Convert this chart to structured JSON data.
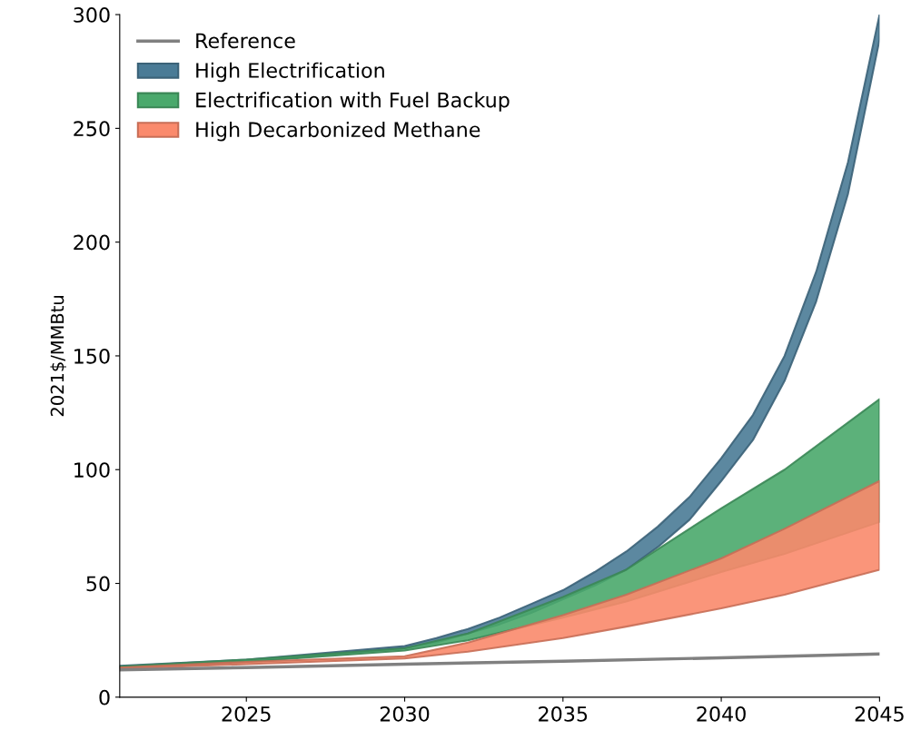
{
  "chart_data": {
    "type": "area",
    "ylabel": "2021$/MMBtu",
    "xlim": [
      2021,
      2045
    ],
    "ylim": [
      0,
      300
    ],
    "xticks": [
      2025,
      2030,
      2035,
      2040,
      2045
    ],
    "yticks": [
      0,
      50,
      100,
      150,
      200,
      250,
      300
    ],
    "grid": false,
    "legend": "top left",
    "series": [
      {
        "name": "Reference",
        "type": "line",
        "color": "#808080",
        "x": [
          2021,
          2025,
          2030,
          2035,
          2040,
          2045
        ],
        "values": [
          12,
          13,
          14.5,
          15.8,
          17.3,
          19
        ]
      },
      {
        "name": "High Electrification",
        "color": "#4a7b96",
        "x": [
          2021,
          2025,
          2030,
          2031,
          2032,
          2033,
          2034,
          2035,
          2036,
          2037,
          2038,
          2039,
          2040,
          2041,
          2042,
          2043,
          2044,
          2045
        ],
        "values": [
          null,
          null,
          null,
          null,
          null,
          null,
          null,
          null,
          null,
          null,
          null,
          null,
          null,
          null,
          null,
          null,
          null,
          null
        ],
        "lower": [
          13,
          15.5,
          21.5,
          24,
          28,
          32,
          37,
          43,
          49,
          56,
          66,
          78,
          95,
          113,
          139,
          174,
          221,
          289
        ],
        "upper": [
          13.8,
          16.5,
          22.5,
          26,
          30,
          35,
          41,
          47,
          55,
          64,
          75,
          88,
          105,
          124,
          150,
          187,
          235,
          300
        ]
      },
      {
        "name": "Electrification with Fuel Backup",
        "color": "#4aa96c",
        "x": [
          2021,
          2025,
          2030,
          2032,
          2035,
          2037,
          2040,
          2042,
          2045
        ],
        "values": [
          null,
          null,
          null,
          null,
          null,
          null,
          null,
          null,
          null
        ],
        "lower": [
          13,
          15.5,
          20.5,
          25,
          35,
          42,
          55,
          63,
          77
        ],
        "upper": [
          13.5,
          16.5,
          21.5,
          28,
          44,
          56,
          83,
          100,
          131
        ]
      },
      {
        "name": "High Decarbonized Methane",
        "color": "#fa8a6c",
        "x": [
          2021,
          2025,
          2030,
          2032,
          2035,
          2037,
          2040,
          2042,
          2045
        ],
        "values": [
          null,
          null,
          null,
          null,
          null,
          null,
          null,
          null,
          null
        ],
        "lower": [
          12.5,
          14.5,
          17,
          20,
          26,
          31,
          39,
          45,
          56
        ],
        "upper": [
          13,
          15.5,
          18,
          24,
          36,
          45,
          61,
          74,
          95
        ]
      }
    ]
  }
}
